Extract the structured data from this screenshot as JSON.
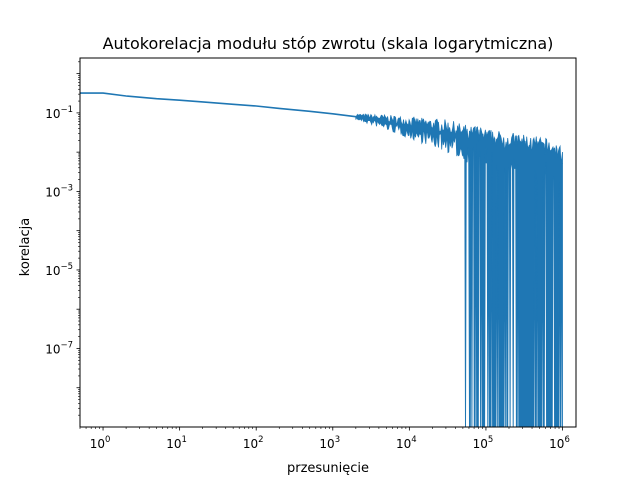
{
  "chart_data": {
    "type": "line",
    "title": "Autokorelacja modułu stóp zwrotu (skala logarytmiczna)",
    "xlabel": "przesunięcie",
    "ylabel": "korelacja",
    "xscale": "log",
    "yscale": "log",
    "xlim": [
      0.5,
      1500000
    ],
    "ylim": [
      1e-09,
      2.5
    ],
    "grid": false,
    "legend": "none",
    "x_ticks": [
      {
        "value": 1,
        "base": "10",
        "exp": "0"
      },
      {
        "value": 10,
        "base": "10",
        "exp": "1"
      },
      {
        "value": 100,
        "base": "10",
        "exp": "2"
      },
      {
        "value": 1000,
        "base": "10",
        "exp": "3"
      },
      {
        "value": 10000,
        "base": "10",
        "exp": "4"
      },
      {
        "value": 100000,
        "base": "10",
        "exp": "5"
      },
      {
        "value": 1000000,
        "base": "10",
        "exp": "6"
      }
    ],
    "y_ticks": [
      {
        "value": 0.1,
        "base": "10",
        "exp": "−1"
      },
      {
        "value": 0.001,
        "base": "10",
        "exp": "−3"
      },
      {
        "value": 1e-05,
        "base": "10",
        "exp": "−5"
      },
      {
        "value": 1e-07,
        "base": "10",
        "exp": "−7"
      }
    ],
    "series": [
      {
        "color": "#1f77b4",
        "x": [
          0.5,
          1,
          2,
          5,
          10,
          20,
          50,
          100,
          200,
          500,
          1000,
          2000,
          3000,
          5000,
          10000,
          20000,
          30000,
          40000,
          50000,
          70000,
          100000,
          150000,
          200000,
          300000,
          500000,
          700000,
          1000000
        ],
        "y": [
          0.32,
          0.32,
          0.27,
          0.23,
          0.21,
          0.19,
          0.165,
          0.15,
          0.13,
          0.11,
          0.095,
          0.08,
          0.07,
          0.06,
          0.045,
          0.035,
          0.03,
          0.025,
          0.02,
          0.018,
          0.015,
          0.013,
          0.012,
          0.011,
          0.009,
          0.008,
          0.005
        ]
      }
    ]
  }
}
